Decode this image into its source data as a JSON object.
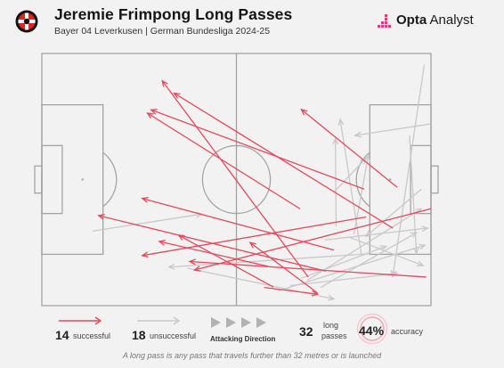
{
  "header": {
    "title": "Jeremie Frimpong Long Passes",
    "subtitle": "Bayer 04 Leverkusen | German Bundesliga 2024-25",
    "brand_bold": "Opta",
    "brand_light": " Analyst"
  },
  "legend": {
    "successful_count": "14",
    "successful_label": "successful",
    "unsuccessful_count": "18",
    "unsuccessful_label": "unsuccessful",
    "direction_label": "Attacking Direction",
    "total_count": "32",
    "total_label_line1": "long",
    "total_label_line2": "passes",
    "accuracy_value": "44%",
    "accuracy_label": "accuracy"
  },
  "footnote": "A long pass is any pass that travels further than 32 metres or is launched",
  "colors": {
    "successful": "#e8485a",
    "unsuccessful": "#c9c9c9",
    "pitch_lines": "#a3a3a3",
    "background": "#f2f2f2"
  },
  "chart_data": {
    "type": "pass-map",
    "pitch": {
      "length": 105,
      "width": 68,
      "attacking_direction": "left-to-right"
    },
    "accuracy_percent": 44,
    "passes": [
      {
        "outcome": "successful",
        "start": [
          60,
          63.1
        ],
        "end": [
          74.4,
          64.9
        ]
      },
      {
        "outcome": "successful",
        "start": [
          71.9,
          60.3
        ],
        "end": [
          32.5,
          7.4
        ]
      },
      {
        "outcome": "successful",
        "start": [
          74.4,
          64.6
        ],
        "end": [
          56.2,
          51.0
        ]
      },
      {
        "outcome": "successful",
        "start": [
          95.9,
          36.1
        ],
        "end": [
          70.0,
          15.1
        ]
      },
      {
        "outcome": "successful",
        "start": [
          94.7,
          47.1
        ],
        "end": [
          35.7,
          10.7
        ]
      },
      {
        "outcome": "successful",
        "start": [
          62.5,
          63.0
        ],
        "end": [
          36.9,
          49.0
        ]
      },
      {
        "outcome": "successful",
        "start": [
          61.0,
          57.4
        ],
        "end": [
          31.7,
          50.7
        ]
      },
      {
        "outcome": "successful",
        "start": [
          78.8,
          53.0
        ],
        "end": [
          27.1,
          39.1
        ]
      },
      {
        "outcome": "successful",
        "start": [
          104.9,
          41.9
        ],
        "end": [
          41.2,
          58.4
        ]
      },
      {
        "outcome": "successful",
        "start": [
          103.7,
          60.3
        ],
        "end": [
          39.9,
          56.1
        ]
      },
      {
        "outcome": "successful",
        "start": [
          87.0,
          36.6
        ],
        "end": [
          29.5,
          15.2
        ]
      },
      {
        "outcome": "successful",
        "start": [
          87.5,
          44.1
        ],
        "end": [
          27.1,
          54.5
        ]
      },
      {
        "outcome": "successful",
        "start": [
          69.7,
          41.9
        ],
        "end": [
          28.5,
          16.1
        ]
      },
      {
        "outcome": "successful",
        "start": [
          76.6,
          58.7
        ],
        "end": [
          15.3,
          43.7
        ]
      },
      {
        "outcome": "unsuccessful",
        "start": [
          13.7,
          47.9
        ],
        "end": [
          43.2,
          43.3
        ]
      },
      {
        "outcome": "unsuccessful",
        "start": [
          104.9,
          19.0
        ],
        "end": [
          84.6,
          22.1
        ]
      },
      {
        "outcome": "unsuccessful",
        "start": [
          88.4,
          54.0
        ],
        "end": [
          34.3,
          57.6
        ]
      },
      {
        "outcome": "unsuccessful",
        "start": [
          102.4,
          36.6
        ],
        "end": [
          87.5,
          49.3
        ]
      },
      {
        "outcome": "unsuccessful",
        "start": [
          71.6,
          61.2
        ],
        "end": [
          102.4,
          41.9
        ]
      },
      {
        "outcome": "unsuccessful",
        "start": [
          76.3,
          50.3
        ],
        "end": [
          104.1,
          47.1
        ]
      },
      {
        "outcome": "unsuccessful",
        "start": [
          39.3,
          57.9
        ],
        "end": [
          78.8,
          66.2
        ]
      },
      {
        "outcome": "unsuccessful",
        "start": [
          83.1,
          49.6
        ],
        "end": [
          102.9,
          57.2
        ]
      },
      {
        "outcome": "unsuccessful",
        "start": [
          103.2,
          3.0
        ],
        "end": [
          94.7,
          60.1
        ]
      },
      {
        "outcome": "unsuccessful",
        "start": [
          63.8,
          64.0
        ],
        "end": [
          103.4,
          51.7
        ]
      },
      {
        "outcome": "unsuccessful",
        "start": [
          86.2,
          54.1
        ],
        "end": [
          80.5,
          17.8
        ]
      },
      {
        "outcome": "unsuccessful",
        "start": [
          79.4,
          46.6
        ],
        "end": [
          79.2,
          23.0
        ]
      },
      {
        "outcome": "unsuccessful",
        "start": [
          78.8,
          37.4
        ],
        "end": [
          87.5,
          28.2
        ]
      },
      {
        "outcome": "unsuccessful",
        "start": [
          75.2,
          63.1
        ],
        "end": [
          101.1,
          48.3
        ]
      },
      {
        "outcome": "unsuccessful",
        "start": [
          84.2,
          48.8
        ],
        "end": [
          88.1,
          27.5
        ]
      },
      {
        "outcome": "unsuccessful",
        "start": [
          99.2,
          22.1
        ],
        "end": [
          101.1,
          53.9
        ]
      },
      {
        "outcome": "unsuccessful",
        "start": [
          70.0,
          60.6
        ],
        "end": [
          92.9,
          52.0
        ]
      },
      {
        "outcome": "unsuccessful",
        "start": [
          67.0,
          62.6
        ],
        "end": [
          95.9,
          59.3
        ]
      }
    ],
    "legend": [
      "successful",
      "unsuccessful"
    ]
  }
}
